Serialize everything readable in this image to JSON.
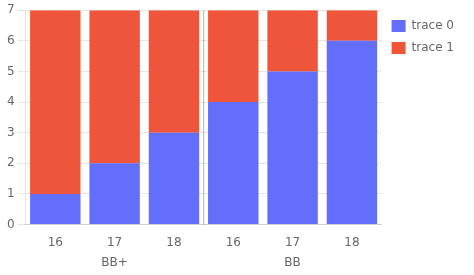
{
  "chart_data": {
    "type": "bar",
    "stacked": true,
    "groups": [
      {
        "name": "BB+",
        "categories": [
          "16",
          "17",
          "18"
        ]
      },
      {
        "name": "BB",
        "categories": [
          "16",
          "17",
          "18"
        ]
      }
    ],
    "series": [
      {
        "name": "trace 0",
        "color": "#636efa",
        "values": [
          1,
          2,
          3,
          4,
          5,
          6
        ]
      },
      {
        "name": "trace 1",
        "color": "#ef553b",
        "values": [
          6,
          5,
          4,
          3,
          2,
          1
        ]
      }
    ],
    "ylim": [
      0,
      7
    ],
    "yticks": [
      0,
      1,
      2,
      3,
      4,
      5,
      6,
      7
    ],
    "grid": true,
    "legend": "right"
  }
}
